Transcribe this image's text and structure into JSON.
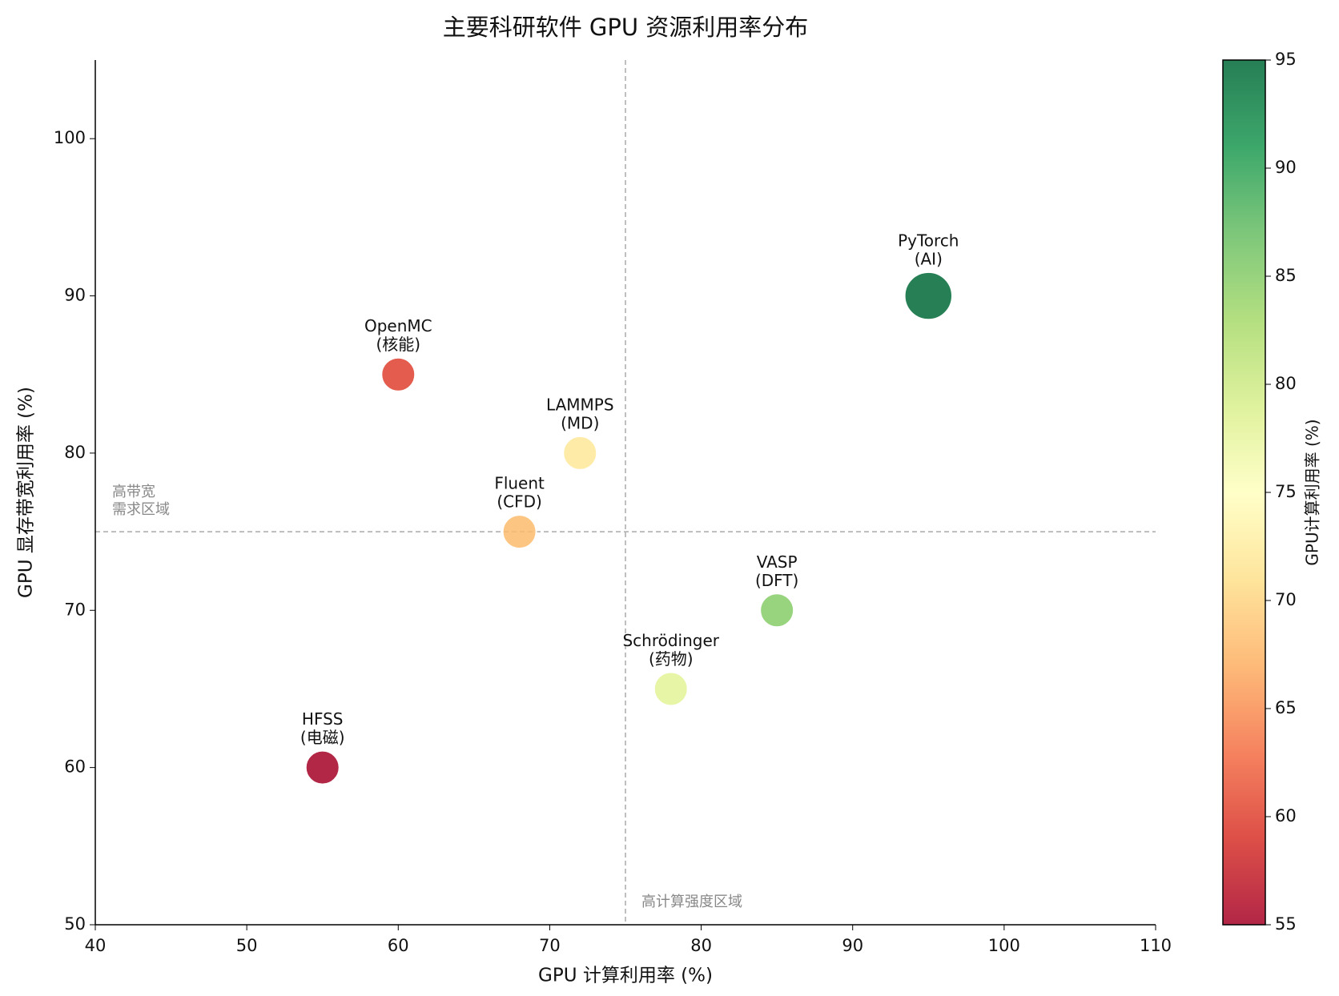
{
  "chart_data": {
    "type": "scatter",
    "title": "主要科研软件 GPU 资源利用率分布",
    "xlabel": "GPU 计算利用率 (%)",
    "ylabel": "GPU 显存带宽利用率 (%)",
    "xlim": [
      40,
      110
    ],
    "ylim": [
      50,
      105
    ],
    "xticks": [
      40,
      50,
      60,
      70,
      80,
      90,
      100,
      110
    ],
    "yticks": [
      50,
      60,
      70,
      80,
      90,
      100
    ],
    "series": [
      {
        "names": [
          "PyTorch",
          "OpenMC",
          "LAMMPS",
          "Fluent",
          "VASP",
          "Schrödinger",
          "HFSS"
        ],
        "fields": [
          "(AI)",
          "(核能)",
          "(MD)",
          "(CFD)",
          "(DFT)",
          "(药物)",
          "(电磁)"
        ],
        "x": [
          95,
          60,
          72,
          68,
          85,
          78,
          55
        ],
        "values": [
          90,
          85,
          80,
          75,
          70,
          65,
          60
        ],
        "sizes": [
          800,
          400,
          400,
          400,
          400,
          400,
          400
        ],
        "color_values": [
          95,
          60,
          72,
          68,
          85,
          78,
          55
        ]
      }
    ],
    "colormap": "RdYlGn",
    "clim": [
      55,
      95
    ],
    "cticks": [
      55,
      60,
      65,
      70,
      75,
      80,
      85,
      90,
      95
    ],
    "clabel": "GPU计算利用率 (%)",
    "hlines": [
      75
    ],
    "vlines": [
      75
    ],
    "annotations": [
      [
        "高带宽",
        "需求区域"
      ],
      [
        "高计算强度区域"
      ]
    ]
  }
}
